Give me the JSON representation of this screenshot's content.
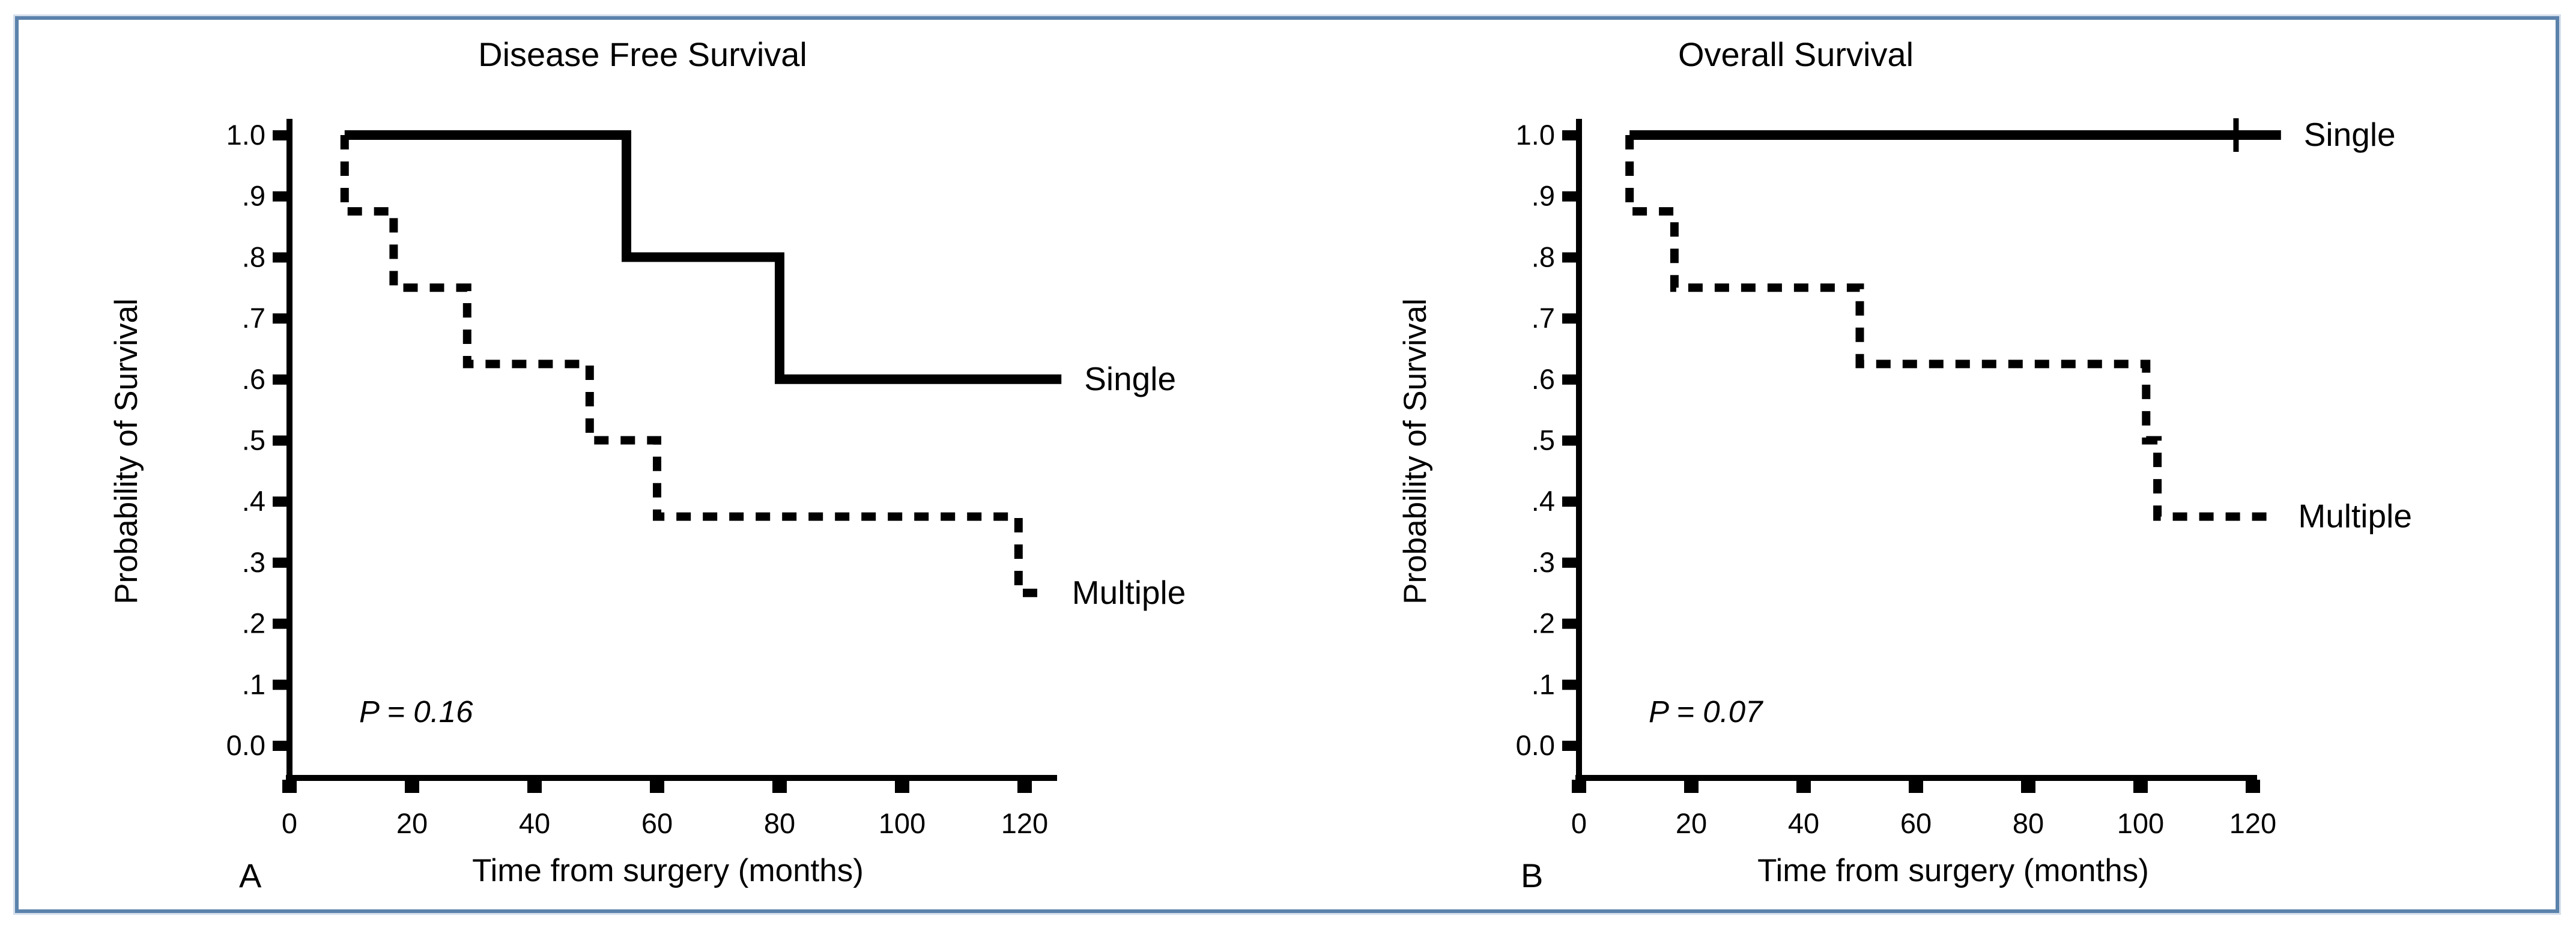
{
  "figure": {
    "background_color": "#ffffff",
    "border_color": "#5b82ab",
    "line_color": "#000000"
  },
  "chart_data": [
    {
      "type": "line",
      "subtype": "kaplan-meier-step",
      "panel_label": "A",
      "title": "Disease Free Survival",
      "xlabel": "Time from surgery (months)",
      "ylabel": "Probability of Survival",
      "p_value_text": "P = 0.16",
      "xlim": [
        0,
        130
      ],
      "ylim": [
        0.0,
        1.0
      ],
      "x_ticks": [
        0,
        20,
        40,
        60,
        80,
        100,
        120
      ],
      "y_ticks": [
        {
          "value": 0.0,
          "label": "0.0"
        },
        {
          "value": 0.1,
          "label": ".1"
        },
        {
          "value": 0.2,
          "label": ".2"
        },
        {
          "value": 0.3,
          "label": ".3"
        },
        {
          "value": 0.4,
          "label": ".4"
        },
        {
          "value": 0.5,
          "label": ".5"
        },
        {
          "value": 0.6,
          "label": ".6"
        },
        {
          "value": 0.7,
          "label": ".7"
        },
        {
          "value": 0.8,
          "label": ".8"
        },
        {
          "value": 0.9,
          "label": ".9"
        },
        {
          "value": 1.0,
          "label": "1.0"
        }
      ],
      "grid": false,
      "legend_position": "labels-at-line-ends",
      "series": [
        {
          "name": "Single",
          "line_style": "solid",
          "points": [
            [
              9,
              1.0
            ],
            [
              55,
              1.0
            ],
            [
              55,
              0.8
            ],
            [
              80,
              0.8
            ],
            [
              80,
              0.6
            ],
            [
              126,
              0.6
            ]
          ],
          "censor_ticks": []
        },
        {
          "name": "Multiple",
          "line_style": "dotted",
          "points": [
            [
              9,
              1.0
            ],
            [
              9,
              0.875
            ],
            [
              17,
              0.875
            ],
            [
              17,
              0.75
            ],
            [
              29,
              0.75
            ],
            [
              29,
              0.625
            ],
            [
              49,
              0.625
            ],
            [
              49,
              0.5
            ],
            [
              60,
              0.5
            ],
            [
              60,
              0.375
            ],
            [
              119,
              0.375
            ],
            [
              119,
              0.25
            ],
            [
              124,
              0.25
            ]
          ],
          "censor_ticks": []
        }
      ]
    },
    {
      "type": "line",
      "subtype": "kaplan-meier-step",
      "panel_label": "B",
      "title": "Overall Survival",
      "xlabel": "Time from surgery (months)",
      "ylabel": "Probability of Survival",
      "p_value_text": "P = 0.07",
      "xlim": [
        0,
        130
      ],
      "ylim": [
        0.0,
        1.0
      ],
      "x_ticks": [
        0,
        20,
        40,
        60,
        80,
        100,
        120
      ],
      "y_ticks": [
        {
          "value": 0.0,
          "label": "0.0"
        },
        {
          "value": 0.1,
          "label": ".1"
        },
        {
          "value": 0.2,
          "label": ".2"
        },
        {
          "value": 0.3,
          "label": ".3"
        },
        {
          "value": 0.4,
          "label": ".4"
        },
        {
          "value": 0.5,
          "label": ".5"
        },
        {
          "value": 0.6,
          "label": ".6"
        },
        {
          "value": 0.7,
          "label": ".7"
        },
        {
          "value": 0.8,
          "label": ".8"
        },
        {
          "value": 0.9,
          "label": ".9"
        },
        {
          "value": 1.0,
          "label": "1.0"
        }
      ],
      "grid": false,
      "legend_position": "labels-at-line-ends",
      "series": [
        {
          "name": "Single",
          "line_style": "solid",
          "points": [
            [
              9,
              1.0
            ],
            [
              125,
              1.0
            ]
          ],
          "censor_ticks": [
            117
          ]
        },
        {
          "name": "Multiple",
          "line_style": "dotted",
          "points": [
            [
              9,
              1.0
            ],
            [
              9,
              0.875
            ],
            [
              17,
              0.875
            ],
            [
              17,
              0.75
            ],
            [
              50,
              0.75
            ],
            [
              50,
              0.625
            ],
            [
              101,
              0.625
            ],
            [
              101,
              0.5
            ],
            [
              103,
              0.5
            ],
            [
              103,
              0.375
            ],
            [
              124,
              0.375
            ]
          ],
          "censor_ticks": []
        }
      ]
    }
  ]
}
